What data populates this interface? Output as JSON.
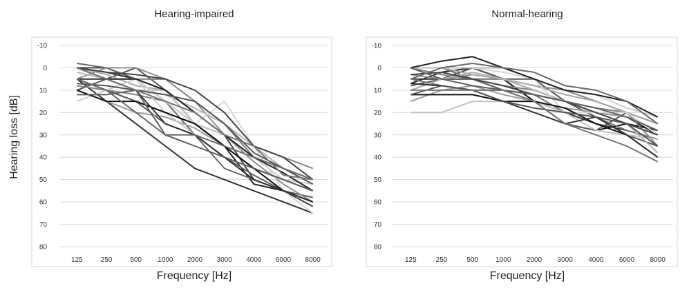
{
  "colors": [
    "#111111",
    "#222222",
    "#333333",
    "#444444",
    "#555555",
    "#5e5e5e",
    "#6a6a6a",
    "#777777",
    "#838383",
    "#8f8f8f",
    "#9b9b9b",
    "#a8a8a8",
    "#b4b4b4",
    "#c0c0c0",
    "#cccccc",
    "#d6d6d6"
  ],
  "chart_data": [
    {
      "type": "line",
      "title": "Hearing-impaired",
      "xlabel": "Frequency [Hz]",
      "ylabel": "Hearing loss [dB]",
      "categories": [
        "125",
        "250",
        "500",
        "1000",
        "2000",
        "3000",
        "4000",
        "6000",
        "8000"
      ],
      "y_ticks": [
        "-10",
        "0",
        "10",
        "20",
        "30",
        "40",
        "50",
        "60",
        "70",
        "80"
      ],
      "ylim": [
        -10,
        80
      ],
      "y_inverted": true,
      "grid": true,
      "series": [
        {
          "values": [
            5,
            10,
            15,
            20,
            25,
            35,
            45,
            50,
            55
          ]
        },
        {
          "values": [
            0,
            2,
            5,
            15,
            25,
            35,
            52,
            55,
            60
          ]
        },
        {
          "values": [
            5,
            15,
            25,
            35,
            45,
            50,
            55,
            60,
            65
          ]
        },
        {
          "values": [
            0,
            0,
            5,
            10,
            20,
            30,
            50,
            55,
            62
          ]
        },
        {
          "values": [
            10,
            5,
            0,
            10,
            25,
            35,
            45,
            50,
            55
          ]
        },
        {
          "values": [
            5,
            10,
            15,
            25,
            30,
            40,
            48,
            55,
            58
          ]
        },
        {
          "values": [
            -2,
            0,
            5,
            15,
            30,
            45,
            50,
            55,
            60
          ]
        },
        {
          "values": [
            0,
            5,
            5,
            5,
            15,
            25,
            40,
            45,
            50
          ]
        },
        {
          "values": [
            8,
            10,
            12,
            15,
            20,
            30,
            35,
            40,
            45
          ]
        },
        {
          "values": [
            5,
            0,
            0,
            5,
            15,
            30,
            42,
            52,
            60
          ]
        },
        {
          "values": [
            10,
            15,
            20,
            22,
            27,
            35,
            45,
            50,
            55
          ]
        },
        {
          "values": [
            0,
            3,
            8,
            10,
            20,
            30,
            40,
            45,
            50
          ]
        },
        {
          "values": [
            2,
            5,
            10,
            12,
            18,
            25,
            35,
            45,
            52
          ]
        },
        {
          "values": [
            0,
            5,
            10,
            10,
            25,
            30,
            40,
            45,
            50
          ]
        },
        {
          "values": [
            15,
            10,
            5,
            20,
            30,
            35,
            40,
            50,
            52
          ]
        },
        {
          "values": [
            5,
            5,
            5,
            15,
            25,
            15,
            35,
            55,
            65
          ]
        },
        {
          "values": [
            10,
            15,
            15,
            20,
            25,
            35,
            45,
            55,
            60
          ]
        },
        {
          "values": [
            0,
            5,
            5,
            10,
            20,
            30,
            40,
            47,
            55
          ]
        },
        {
          "values": [
            5,
            5,
            10,
            25,
            30,
            40,
            50,
            55,
            60
          ]
        },
        {
          "values": [
            0,
            2,
            3,
            5,
            10,
            20,
            35,
            40,
            50
          ]
        },
        {
          "values": [
            7,
            8,
            10,
            12,
            15,
            25,
            38,
            45,
            52
          ]
        },
        {
          "values": [
            12,
            12,
            10,
            30,
            35,
            40,
            45,
            50,
            55
          ]
        },
        {
          "values": [
            5,
            10,
            20,
            30,
            30,
            35,
            40,
            45,
            50
          ]
        },
        {
          "values": [
            0,
            5,
            10,
            15,
            20,
            30,
            35,
            48,
            50
          ]
        }
      ]
    },
    {
      "type": "line",
      "title": "Normal-hearing",
      "xlabel": "Frequency [Hz]",
      "ylabel": "",
      "categories": [
        "125",
        "250",
        "500",
        "1000",
        "2000",
        "3000",
        "4000",
        "6000",
        "8000"
      ],
      "y_ticks": [
        "-10",
        "0",
        "10",
        "20",
        "30",
        "40",
        "50",
        "60",
        "70",
        "80"
      ],
      "ylim": [
        -10,
        80
      ],
      "y_inverted": true,
      "grid": true,
      "series": [
        {
          "values": [
            0,
            0,
            0,
            5,
            15,
            25,
            28,
            25,
            28
          ]
        },
        {
          "values": [
            7,
            2,
            0,
            5,
            10,
            15,
            20,
            22,
            30
          ]
        },
        {
          "values": [
            5,
            5,
            5,
            10,
            15,
            20,
            25,
            28,
            32
          ]
        },
        {
          "values": [
            10,
            5,
            0,
            0,
            5,
            10,
            15,
            20,
            30
          ]
        },
        {
          "values": [
            0,
            0,
            0,
            5,
            5,
            15,
            22,
            30,
            35
          ]
        },
        {
          "values": [
            8,
            5,
            5,
            10,
            15,
            25,
            28,
            20,
            25
          ]
        },
        {
          "values": [
            0,
            0,
            5,
            5,
            10,
            15,
            18,
            20,
            25
          ]
        },
        {
          "values": [
            5,
            8,
            10,
            10,
            12,
            20,
            22,
            28,
            32
          ]
        },
        {
          "values": [
            0,
            3,
            5,
            8,
            10,
            15,
            18,
            20,
            35
          ]
        },
        {
          "values": [
            3,
            5,
            3,
            5,
            8,
            10,
            15,
            20,
            30
          ]
        },
        {
          "values": [
            15,
            10,
            8,
            12,
            15,
            18,
            20,
            22,
            28
          ]
        },
        {
          "values": [
            0,
            0,
            3,
            5,
            8,
            12,
            15,
            20,
            25
          ]
        },
        {
          "values": [
            10,
            5,
            2,
            5,
            10,
            15,
            20,
            25,
            38
          ]
        },
        {
          "values": [
            20,
            20,
            15,
            15,
            15,
            20,
            28,
            30,
            32
          ]
        },
        {
          "values": [
            5,
            0,
            0,
            0,
            5,
            10,
            12,
            18,
            22
          ]
        },
        {
          "values": [
            0,
            0,
            0,
            2,
            5,
            20,
            20,
            20,
            30
          ]
        },
        {
          "values": [
            12,
            12,
            12,
            15,
            15,
            18,
            25,
            30,
            40
          ]
        },
        {
          "values": [
            0,
            -3,
            -5,
            0,
            5,
            10,
            12,
            15,
            22
          ]
        },
        {
          "values": [
            7,
            8,
            10,
            15,
            20,
            25,
            22,
            30,
            40
          ]
        },
        {
          "values": [
            3,
            2,
            5,
            8,
            12,
            15,
            20,
            25,
            30
          ]
        },
        {
          "values": [
            12,
            8,
            10,
            15,
            18,
            20,
            22,
            25,
            35
          ]
        },
        {
          "values": [
            0,
            5,
            8,
            10,
            12,
            15,
            18,
            22,
            28
          ]
        },
        {
          "values": [
            5,
            0,
            -2,
            0,
            2,
            8,
            10,
            15,
            25
          ]
        },
        {
          "values": [
            10,
            10,
            10,
            10,
            15,
            25,
            30,
            35,
            42
          ]
        }
      ]
    }
  ]
}
